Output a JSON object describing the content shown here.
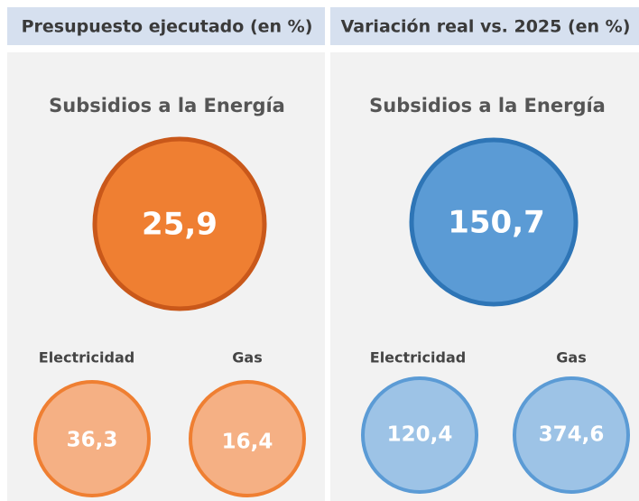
{
  "panels": [
    {
      "header": "Presupuesto ejecutado (en %)",
      "title": "Subsidios a la Energía",
      "main_value": "25,9",
      "items": [
        {
          "label": "Electricidad",
          "value": "36,3"
        },
        {
          "label": "Gas",
          "value": "16,4"
        }
      ]
    },
    {
      "header": "Variación real vs. 2025 (en %)",
      "title": "Subsidios a la Energía",
      "main_value": "150,7",
      "items": [
        {
          "label": "Electricidad",
          "value": "120,4"
        },
        {
          "label": "Gas",
          "value": "374,6"
        }
      ]
    }
  ]
}
